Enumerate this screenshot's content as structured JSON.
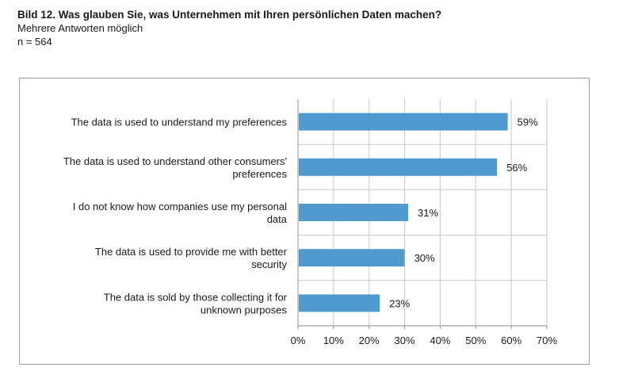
{
  "header": {
    "title": "Bild 12. Was glauben Sie, was Unternehmen mit Ihren persönlichen Daten machen?",
    "subtitle": "Mehrere Antworten möglich",
    "n": "n = 564"
  },
  "chart_data": {
    "type": "bar",
    "orientation": "horizontal",
    "categories": [
      [
        "The data is used to understand my preferences"
      ],
      [
        "The data is used to understand other consumers'",
        "preferences"
      ],
      [
        "I do not know how companies use my personal",
        "data"
      ],
      [
        "The data is used to provide me with better",
        "security"
      ],
      [
        "The data is sold by those collecting it for",
        "unknown purposes"
      ]
    ],
    "values": [
      59,
      56,
      31,
      30,
      23
    ],
    "value_labels": [
      "59%",
      "56%",
      "31%",
      "30%",
      "23%"
    ],
    "xlim": [
      0,
      70
    ],
    "ticks": [
      0,
      10,
      20,
      30,
      40,
      50,
      60,
      70
    ],
    "tick_labels": [
      "0%",
      "10%",
      "20%",
      "30%",
      "40%",
      "50%",
      "60%",
      "70%"
    ],
    "grid": "vertical",
    "bar_color": "#4f9bd0",
    "grid_color": "#c8c8c8",
    "axis_color": "#8c8c8c"
  }
}
